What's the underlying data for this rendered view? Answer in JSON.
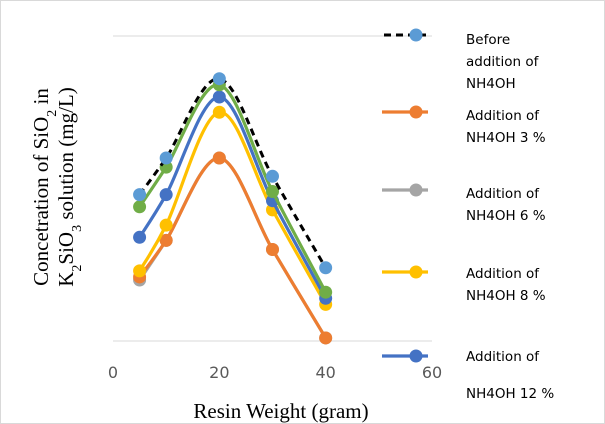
{
  "chart_data": {
    "type": "line",
    "title": "",
    "xlabel": "Resin Weight (gram)",
    "ylabel": {
      "line1_parts": [
        "Concetration of SiO",
        "2",
        " in"
      ],
      "line2_parts": [
        "K",
        "2",
        "SiO",
        "3",
        " solution (mg/L)"
      ]
    },
    "xlim": [
      0,
      60
    ],
    "ylim": [
      0,
      100
    ],
    "x_ticks": [
      "0",
      "20",
      "40",
      "60"
    ],
    "grid": "horizontal",
    "legend_position": "right",
    "x": [
      5,
      10,
      20,
      30,
      40
    ],
    "series": [
      {
        "name": [
          "Before",
          "addition of",
          "NH4OH"
        ],
        "color": "#5b9bd5",
        "dashed": true,
        "values": [
          48,
          60,
          86,
          54,
          24
        ]
      },
      {
        "name": [
          "Addition of",
          "NH4OH 3 %"
        ],
        "color": "#ed7d31",
        "dashed": false,
        "values": [
          21,
          33,
          60,
          30,
          1
        ]
      },
      {
        "name": [
          "Addition of",
          "NH4OH 6 %"
        ],
        "color": "#a5a5a5",
        "dashed": false,
        "values": [
          20,
          33,
          60,
          30,
          1
        ]
      },
      {
        "name": [
          "Addition of",
          "NH4OH 8 %"
        ],
        "color": "#ffc000",
        "dashed": false,
        "values": [
          23,
          38,
          75,
          43,
          12
        ]
      },
      {
        "name": [
          "Addition of",
          "NH4OH 12 %"
        ],
        "color": "#4472c4",
        "dashed": false,
        "values": [
          34,
          48,
          80,
          46,
          14
        ]
      },
      {
        "name": [],
        "color": "#70ad47",
        "dashed": false,
        "values": [
          44,
          57,
          84,
          49,
          16
        ]
      }
    ]
  }
}
